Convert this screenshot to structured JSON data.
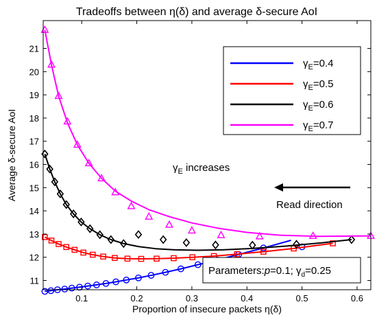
{
  "chart_data": {
    "type": "line",
    "title": "Tradeoffs between η(δ) and average δ-secure AoI",
    "xlabel": "Proportion of insecure packets η(δ)",
    "ylabel": "Average δ-secure AoI",
    "xlim": [
      0.03,
      0.625
    ],
    "ylim": [
      10.6,
      22.2
    ],
    "x_ticks": [
      "0.1",
      "0.2",
      "0.3",
      "0.4",
      "0.5",
      "0.6"
    ],
    "x_tick_values": [
      0.1,
      0.2,
      0.3,
      0.4,
      0.5,
      0.6
    ],
    "y_ticks": [
      "11",
      "12",
      "13",
      "14",
      "15",
      "16",
      "17",
      "18",
      "19",
      "20",
      "21"
    ],
    "y_tick_values": [
      11,
      12,
      13,
      14,
      15,
      16,
      17,
      18,
      19,
      20,
      21
    ],
    "grid": false,
    "legend_position": "top-right",
    "series": [
      {
        "legend_symbol": "γ",
        "legend_sub": "E",
        "legend_value": "=0.4",
        "color": "#0000ff",
        "marker": "circle",
        "x": [
          0.033,
          0.044,
          0.056,
          0.069,
          0.082,
          0.096,
          0.111,
          0.127,
          0.144,
          0.162,
          0.181,
          0.203,
          0.226,
          0.252,
          0.28,
          0.311,
          0.346,
          0.385,
          0.43,
          0.48
        ],
        "y": [
          10.53,
          10.56,
          10.6,
          10.63,
          10.67,
          10.71,
          10.76,
          10.81,
          10.87,
          10.94,
          11.02,
          11.11,
          11.22,
          11.35,
          11.5,
          11.68,
          11.88,
          12.12,
          12.4,
          12.73
        ],
        "marker_x": [
          0.033,
          0.044,
          0.056,
          0.069,
          0.082,
          0.096,
          0.111,
          0.127,
          0.144,
          0.162,
          0.181,
          0.203,
          0.226,
          0.252,
          0.28,
          0.311,
          0.346,
          0.385,
          0.43,
          0.5
        ],
        "marker_y": [
          10.53,
          10.56,
          10.6,
          10.63,
          10.67,
          10.71,
          10.76,
          10.81,
          10.87,
          10.94,
          11.02,
          11.11,
          11.22,
          11.35,
          11.5,
          11.68,
          11.88,
          12.12,
          12.4,
          12.45
        ]
      },
      {
        "legend_symbol": "γ",
        "legend_sub": "E",
        "legend_value": "=0.5",
        "color": "#ff0000",
        "marker": "square",
        "x": [
          0.033,
          0.045,
          0.058,
          0.072,
          0.087,
          0.103,
          0.12,
          0.139,
          0.16,
          0.183,
          0.208,
          0.236,
          0.267,
          0.301,
          0.34,
          0.382,
          0.43,
          0.485,
          0.556
        ],
        "y": [
          12.87,
          12.72,
          12.57,
          12.44,
          12.32,
          12.2,
          12.11,
          12.03,
          11.97,
          11.94,
          11.93,
          11.94,
          11.96,
          12.0,
          12.05,
          12.13,
          12.24,
          12.38,
          12.6
        ],
        "marker_x": [
          0.033,
          0.045,
          0.058,
          0.072,
          0.087,
          0.103,
          0.12,
          0.139,
          0.16,
          0.183,
          0.208,
          0.236,
          0.267,
          0.301,
          0.34,
          0.382,
          0.43,
          0.485,
          0.556
        ],
        "marker_y": [
          12.87,
          12.72,
          12.57,
          12.44,
          12.32,
          12.2,
          12.11,
          12.03,
          11.97,
          11.94,
          11.93,
          11.94,
          11.96,
          12.0,
          12.05,
          12.13,
          12.24,
          12.38,
          12.6
        ]
      },
      {
        "legend_symbol": "γ",
        "legend_sub": "E",
        "legend_value": "=0.6",
        "color": "#000000",
        "marker": "diamond",
        "x": [
          0.033,
          0.042,
          0.051,
          0.061,
          0.072,
          0.085,
          0.099,
          0.115,
          0.133,
          0.153,
          0.176,
          0.203,
          0.234,
          0.27,
          0.31,
          0.356,
          0.41,
          0.47,
          0.535,
          0.59
        ],
        "y": [
          16.45,
          15.8,
          15.25,
          14.73,
          14.27,
          13.87,
          13.52,
          13.23,
          12.97,
          12.76,
          12.59,
          12.46,
          12.37,
          12.32,
          12.3,
          12.32,
          12.38,
          12.48,
          12.62,
          12.76
        ],
        "marker_x": [
          0.033,
          0.042,
          0.051,
          0.061,
          0.072,
          0.085,
          0.099,
          0.115,
          0.133,
          0.153,
          0.176,
          0.203,
          0.248,
          0.29,
          0.343,
          0.41,
          0.49,
          0.59
        ],
        "marker_y": [
          16.45,
          15.8,
          15.25,
          14.73,
          14.27,
          13.87,
          13.52,
          13.23,
          12.97,
          12.76,
          12.59,
          12.98,
          12.76,
          12.63,
          12.53,
          12.52,
          12.56,
          12.76
        ]
      },
      {
        "legend_symbol": "γ",
        "legend_sub": "E",
        "legend_value": "=0.7",
        "color": "#ff00ff",
        "marker": "triangle",
        "x": [
          0.033,
          0.045,
          0.058,
          0.074,
          0.092,
          0.113,
          0.136,
          0.161,
          0.19,
          0.222,
          0.259,
          0.3,
          0.348,
          0.4,
          0.46,
          0.53,
          0.625
        ],
        "y": [
          21.8,
          20.3,
          18.95,
          17.8,
          16.85,
          16.05,
          15.4,
          14.85,
          14.42,
          14.05,
          13.75,
          13.48,
          13.25,
          13.07,
          12.95,
          12.9,
          12.92
        ],
        "marker_x": [
          0.033,
          0.045,
          0.058,
          0.074,
          0.092,
          0.113,
          0.136,
          0.161,
          0.19,
          0.222,
          0.259,
          0.3,
          0.353,
          0.423,
          0.52,
          0.625
        ],
        "marker_y": [
          21.8,
          20.3,
          18.95,
          17.85,
          16.85,
          16.05,
          15.4,
          14.8,
          14.2,
          13.75,
          13.4,
          13.15,
          12.95,
          12.9,
          12.92,
          12.92
        ]
      }
    ],
    "annotations": {
      "gamma_increases": {
        "symbol": "γ",
        "sub": "E",
        "text": " increases"
      },
      "read_direction": "Read direction",
      "parameters": {
        "prefix": "Parameters:",
        "p_var": "p",
        "p_val": "=0.1; ",
        "gamma_symbol": "γ",
        "gamma_sub": "d",
        "gamma_val": "=0.25"
      }
    }
  }
}
